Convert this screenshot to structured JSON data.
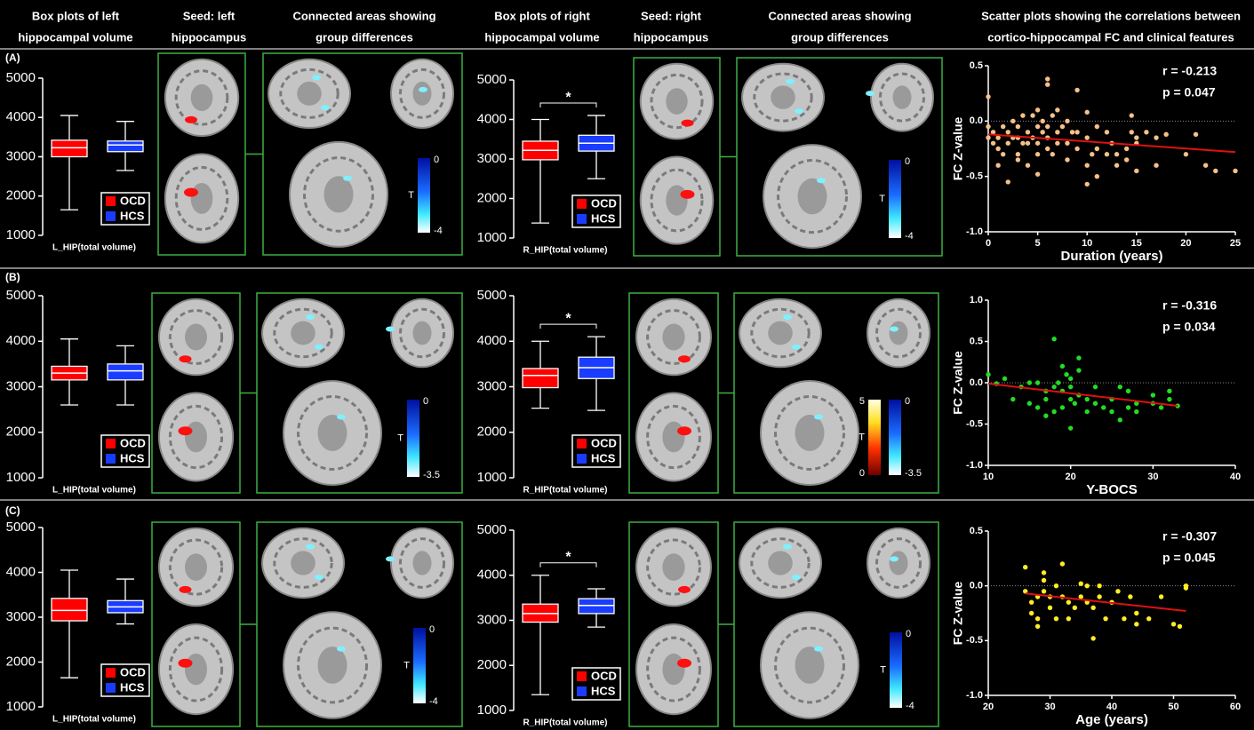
{
  "headers": [
    [
      "Box plots of left",
      "hippocampal volume"
    ],
    [
      "Seed: left",
      "hippocampus"
    ],
    [
      "Connected areas showing",
      "group differences"
    ],
    [
      "Box plots of right",
      "hippocampal volume"
    ],
    [
      "Seed: right",
      "hippocampus"
    ],
    [
      "Connected areas showing",
      "group differences"
    ],
    [
      "Scatter plots showing the correlations between",
      "cortico-hippocampal FC and clinical features"
    ]
  ],
  "panels": [
    "(A)",
    "(B)",
    "(C)"
  ],
  "chart_data": [
    {
      "type": "box",
      "xlabel": "L_HIP(total volume)",
      "ylim": [
        1000,
        5000
      ],
      "yticks": [
        1000,
        2000,
        3000,
        4000,
        5000
      ],
      "boxes": [
        {
          "name": "OCD",
          "color": "#ff0000",
          "min": 1650,
          "q1": 3000,
          "median": 3230,
          "q3": 3420,
          "max": 4050
        },
        {
          "name": "HCS",
          "color": "#1a3cff",
          "min": 2650,
          "q1": 3130,
          "median": 3300,
          "q3": 3400,
          "max": 3900
        }
      ]
    },
    {
      "type": "box",
      "xlabel": "R_HIP(total volume)",
      "annotation": "*",
      "ylim": [
        1000,
        5000
      ],
      "yticks": [
        1000,
        2000,
        3000,
        4000,
        5000
      ],
      "boxes": [
        {
          "name": "OCD",
          "color": "#ff0000",
          "min": 1380,
          "q1": 2980,
          "median": 3220,
          "q3": 3450,
          "max": 4000
        },
        {
          "name": "HCS",
          "color": "#1a3cff",
          "min": 2500,
          "q1": 3200,
          "median": 3400,
          "q3": 3600,
          "max": 4100
        }
      ]
    },
    {
      "type": "scatter",
      "xlabel": "Duration (years)",
      "ylabel": "FC Z-value",
      "color": "#f5c08a",
      "annotations": [
        "r = -0.213",
        "p = 0.047"
      ],
      "xlim": [
        0,
        25
      ],
      "xticks": [
        0,
        5,
        10,
        15,
        20,
        25
      ],
      "ylim": [
        -1,
        0.5
      ],
      "yticks": [
        {
          "value": -1,
          "label": "-1.0"
        },
        -0.5,
        {
          "value": 0,
          "label": "0.0"
        },
        0.5
      ],
      "x": [
        0,
        0,
        0,
        0.5,
        0.5,
        1,
        1,
        1,
        1.5,
        1.5,
        2,
        2,
        2,
        2.5,
        2.5,
        3,
        3,
        3,
        3,
        3.5,
        3.5,
        4,
        4,
        4,
        4.5,
        4.5,
        5,
        5,
        5,
        5,
        5,
        5.5,
        5.5,
        6,
        6,
        6,
        6,
        6,
        6.5,
        6.5,
        7,
        7,
        7,
        7.5,
        8,
        8,
        8,
        8.5,
        9,
        9,
        9,
        10,
        10,
        10,
        10,
        10.5,
        11,
        11,
        11,
        12,
        12,
        12.5,
        13,
        13,
        14,
        14,
        14.5,
        14.5,
        15,
        15,
        15,
        16,
        17,
        17,
        18,
        20,
        21,
        22,
        23,
        25
      ],
      "y": [
        0.22,
        -0.05,
        -0.15,
        -0.2,
        -0.1,
        -0.15,
        -0.25,
        -0.4,
        -0.05,
        -0.3,
        -0.1,
        -0.2,
        -0.55,
        -0.15,
        0,
        -0.05,
        -0.15,
        -0.3,
        -0.35,
        0.05,
        -0.2,
        -0.1,
        -0.2,
        -0.4,
        0.05,
        -0.15,
        0.1,
        -0.05,
        -0.2,
        -0.3,
        -0.48,
        -0.1,
        0,
        0.38,
        0.33,
        -0.05,
        -0.15,
        -0.25,
        0.05,
        -0.3,
        0.1,
        -0.1,
        -0.2,
        -0.05,
        0,
        -0.2,
        -0.35,
        -0.1,
        0.28,
        -0.1,
        -0.25,
        0.08,
        -0.15,
        -0.4,
        -0.57,
        -0.3,
        -0.05,
        -0.25,
        -0.5,
        -0.1,
        -0.3,
        -0.2,
        -0.3,
        -0.4,
        -0.25,
        -0.35,
        0.05,
        -0.1,
        -0.15,
        -0.2,
        -0.45,
        -0.1,
        -0.15,
        -0.4,
        -0.12,
        -0.3,
        -0.12,
        -0.4,
        -0.45,
        -0.45
      ],
      "fit": {
        "color": "#e01010",
        "x": [
          0,
          25
        ],
        "y": [
          -0.12,
          -0.28
        ]
      }
    },
    {
      "type": "box",
      "xlabel": "L_HIP(total volume)",
      "ylim": [
        1000,
        5000
      ],
      "yticks": [
        1000,
        2000,
        3000,
        4000,
        5000
      ],
      "boxes": [
        {
          "name": "OCD",
          "color": "#ff0000",
          "min": 2600,
          "q1": 3150,
          "median": 3300,
          "q3": 3450,
          "max": 4050
        },
        {
          "name": "HCS",
          "color": "#1a3cff",
          "min": 2600,
          "q1": 3150,
          "median": 3350,
          "q3": 3500,
          "max": 3900
        }
      ]
    },
    {
      "type": "box",
      "xlabel": "R_HIP(total volume)",
      "annotation": "*",
      "ylim": [
        1000,
        5000
      ],
      "yticks": [
        1000,
        2000,
        3000,
        4000,
        5000
      ],
      "boxes": [
        {
          "name": "OCD",
          "color": "#ff0000",
          "min": 2530,
          "q1": 2980,
          "median": 3250,
          "q3": 3400,
          "max": 4000
        },
        {
          "name": "HCS",
          "color": "#1a3cff",
          "min": 2480,
          "q1": 3180,
          "median": 3420,
          "q3": 3650,
          "max": 4100
        }
      ]
    },
    {
      "type": "scatter",
      "xlabel": "Y-BOCS",
      "ylabel": "FC Z-value",
      "color": "#22dd22",
      "annotations": [
        "r = -0.316",
        "p = 0.034"
      ],
      "xlim": [
        10,
        40
      ],
      "xticks": [
        10,
        20,
        30,
        40
      ],
      "ylim": [
        -1,
        1
      ],
      "yticks": [
        {
          "value": -1,
          "label": "-1.0"
        },
        -0.5,
        {
          "value": 0,
          "label": "0.0"
        },
        0.5,
        {
          "value": 1,
          "label": "1.0"
        }
      ],
      "x": [
        10,
        11,
        12,
        13,
        14,
        15,
        15,
        16,
        16,
        17,
        17,
        17,
        18,
        18,
        18,
        18.5,
        19,
        19,
        19,
        19.5,
        20,
        20,
        20,
        20,
        20.5,
        21,
        21,
        21,
        22,
        22,
        23,
        23,
        24,
        25,
        25,
        26,
        26,
        27,
        27,
        28,
        28,
        30,
        30,
        31,
        32,
        32,
        33
      ],
      "y": [
        0.1,
        -0.01,
        0.05,
        -0.2,
        -0.05,
        0,
        -0.25,
        -0.3,
        0,
        -0.1,
        -0.2,
        -0.4,
        0.53,
        -0.05,
        -0.35,
        0,
        0.2,
        -0.1,
        -0.3,
        0.1,
        0.05,
        -0.05,
        -0.2,
        -0.55,
        -0.25,
        0.3,
        0.15,
        -0.15,
        -0.2,
        -0.35,
        -0.05,
        -0.25,
        -0.3,
        -0.2,
        -0.35,
        -0.05,
        -0.45,
        -0.3,
        -0.1,
        -0.35,
        -0.25,
        -0.15,
        -0.25,
        -0.3,
        -0.1,
        -0.2,
        -0.28
      ],
      "fit": {
        "color": "#e01010",
        "x": [
          10,
          33
        ],
        "y": [
          -0.01,
          -0.28
        ]
      }
    },
    {
      "type": "box",
      "xlabel": "L_HIP(total volume)",
      "ylim": [
        1000,
        5000
      ],
      "yticks": [
        1000,
        2000,
        3000,
        4000,
        5000
      ],
      "boxes": [
        {
          "name": "OCD",
          "color": "#ff0000",
          "min": 1650,
          "q1": 2920,
          "median": 3150,
          "q3": 3420,
          "max": 4050
        },
        {
          "name": "HCS",
          "color": "#1a3cff",
          "min": 2850,
          "q1": 3100,
          "median": 3230,
          "q3": 3370,
          "max": 3850
        }
      ]
    },
    {
      "type": "box",
      "xlabel": "R_HIP(total volume)",
      "annotation": "*",
      "ylim": [
        1000,
        5000
      ],
      "yticks": [
        1000,
        2000,
        3000,
        4000,
        5000
      ],
      "boxes": [
        {
          "name": "OCD",
          "color": "#ff0000",
          "min": 1350,
          "q1": 2960,
          "median": 3150,
          "q3": 3360,
          "max": 4000
        },
        {
          "name": "HCS",
          "color": "#1a3cff",
          "min": 2850,
          "q1": 3150,
          "median": 3330,
          "q3": 3480,
          "max": 3700
        }
      ]
    },
    {
      "type": "scatter",
      "xlabel": "Age (years)",
      "ylabel": "FC Z-value",
      "color": "#ffee22",
      "annotations": [
        "r = -0.307",
        "p = 0.045"
      ],
      "xlim": [
        20,
        60
      ],
      "xticks": [
        20,
        30,
        40,
        50,
        60
      ],
      "ylim": [
        -1,
        0.5
      ],
      "yticks": [
        {
          "value": -1,
          "label": "-1.0"
        },
        -0.5,
        {
          "value": 0,
          "label": "0.0"
        },
        0.5
      ],
      "x": [
        26,
        26,
        27,
        27,
        28,
        28,
        28,
        29,
        29,
        29,
        30,
        30,
        31,
        31,
        32,
        32,
        33,
        33,
        34,
        35,
        35,
        36,
        36,
        37,
        37,
        38,
        38,
        39,
        40,
        41,
        42,
        43,
        44,
        44,
        46,
        48,
        50,
        51,
        52,
        52
      ],
      "y": [
        0.17,
        -0.05,
        -0.15,
        -0.25,
        -0.1,
        -0.3,
        -0.37,
        0.05,
        -0.05,
        0.12,
        -0.1,
        -0.2,
        0,
        -0.3,
        0.2,
        -0.1,
        -0.3,
        -0.15,
        -0.2,
        0.02,
        -0.1,
        0,
        -0.15,
        -0.48,
        -0.2,
        0,
        -0.1,
        -0.3,
        -0.15,
        -0.05,
        -0.3,
        -0.1,
        -0.25,
        -0.35,
        -0.3,
        -0.1,
        -0.35,
        -0.37,
        0,
        -0.02
      ],
      "fit": {
        "color": "#e01010",
        "x": [
          26,
          52
        ],
        "y": [
          -0.07,
          -0.23
        ]
      }
    }
  ],
  "colorbars": [
    {
      "scale": "cool",
      "top": 0,
      "bottom": -4,
      "label": "T"
    },
    {
      "scale": "cool",
      "top": 0,
      "bottom": -4,
      "label": "T"
    },
    {
      "scale": "cool",
      "top": 0,
      "bottom": -3.5,
      "label": "T"
    },
    {
      "scale": "hot",
      "top": 5,
      "bottom": 0,
      "label": "T"
    },
    {
      "scale": "cool",
      "top": 0,
      "bottom": -3.5
    },
    {
      "scale": "cool",
      "top": 0,
      "bottom": -4,
      "label": "T"
    },
    {
      "scale": "cool",
      "top": 0,
      "bottom": -4,
      "label": "T"
    }
  ]
}
